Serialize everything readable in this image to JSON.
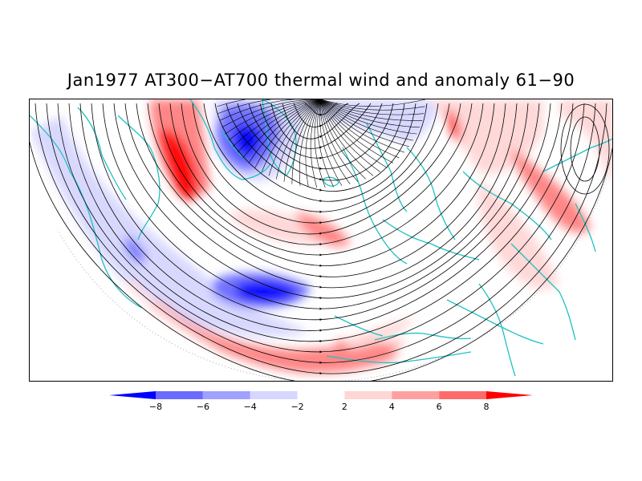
{
  "title": "Jan1977 AT300−AT700 thermal wind and anomaly 61−90",
  "colorbar": {
    "levels": [
      "−8",
      "−6",
      "−4",
      "−2",
      "2",
      "4",
      "6",
      "8"
    ],
    "colors": [
      "#0000ff",
      "#6a6aff",
      "#a0a0ff",
      "#d6d6ff",
      "#ffffff",
      "#ffd6d6",
      "#ffa0a0",
      "#ff6a6a",
      "#ff0000"
    ]
  },
  "map": {
    "projection": "polar stereographic, northern hemisphere",
    "coastline_color": "#1fc1c1",
    "streamline_color": "#000000",
    "anomaly_colors": {
      "strong_negative": "#0000ff",
      "negative": "#6a6aff",
      "weak_negative": "#d6d6ff",
      "weak_positive": "#ffd6d6",
      "positive": "#ff8080",
      "strong_positive": "#ff0000"
    }
  }
}
